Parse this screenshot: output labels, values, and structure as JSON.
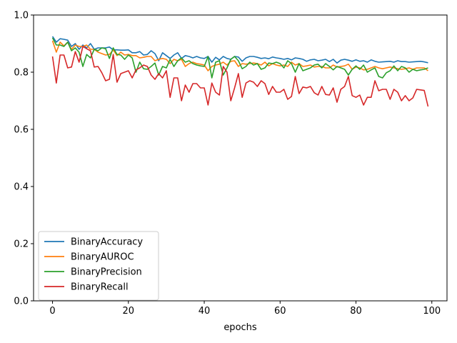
{
  "chart_data": {
    "type": "line",
    "title": "",
    "xlabel": "epochs",
    "ylabel": "",
    "xlim": [
      -5,
      104
    ],
    "ylim": [
      0.0,
      1.0
    ],
    "xticks": [
      0,
      20,
      40,
      60,
      80,
      100
    ],
    "yticks": [
      0.0,
      0.2,
      0.4,
      0.6,
      0.8,
      1.0
    ],
    "xtick_labels": [
      "0",
      "20",
      "40",
      "60",
      "80",
      "100"
    ],
    "ytick_labels": [
      "0.0",
      "0.2",
      "0.4",
      "0.6",
      "0.8",
      "1.0"
    ],
    "grid": false,
    "legend_position": "lower-left",
    "x": [
      0,
      1,
      2,
      3,
      4,
      5,
      6,
      7,
      8,
      9,
      10,
      11,
      12,
      13,
      14,
      15,
      16,
      17,
      18,
      19,
      20,
      21,
      22,
      23,
      24,
      25,
      26,
      27,
      28,
      29,
      30,
      31,
      32,
      33,
      34,
      35,
      36,
      37,
      38,
      39,
      40,
      41,
      42,
      43,
      44,
      45,
      46,
      47,
      48,
      49,
      50,
      51,
      52,
      53,
      54,
      55,
      56,
      57,
      58,
      59,
      60,
      61,
      62,
      63,
      64,
      65,
      66,
      67,
      68,
      69,
      70,
      71,
      72,
      73,
      74,
      75,
      76,
      77,
      78,
      79,
      80,
      81,
      82,
      83,
      84,
      85,
      86,
      87,
      88,
      89,
      90,
      91,
      92,
      93,
      94,
      95,
      96,
      97,
      98,
      99
    ],
    "series": [
      {
        "name": "BinaryAccuracy",
        "color": "#1f77b4",
        "values": [
          0.925,
          0.905,
          0.917,
          0.915,
          0.912,
          0.89,
          0.9,
          0.88,
          0.895,
          0.885,
          0.9,
          0.88,
          0.885,
          0.885,
          0.885,
          0.888,
          0.878,
          0.878,
          0.877,
          0.877,
          0.878,
          0.868,
          0.868,
          0.872,
          0.86,
          0.862,
          0.875,
          0.865,
          0.84,
          0.868,
          0.858,
          0.848,
          0.86,
          0.868,
          0.848,
          0.858,
          0.855,
          0.85,
          0.855,
          0.85,
          0.848,
          0.855,
          0.835,
          0.852,
          0.843,
          0.855,
          0.848,
          0.845,
          0.855,
          0.853,
          0.838,
          0.85,
          0.855,
          0.855,
          0.852,
          0.848,
          0.85,
          0.847,
          0.853,
          0.85,
          0.848,
          0.845,
          0.848,
          0.843,
          0.85,
          0.848,
          0.845,
          0.838,
          0.843,
          0.845,
          0.84,
          0.842,
          0.845,
          0.837,
          0.845,
          0.832,
          0.842,
          0.845,
          0.842,
          0.838,
          0.843,
          0.838,
          0.84,
          0.835,
          0.843,
          0.838,
          0.835,
          0.836,
          0.837,
          0.838,
          0.835,
          0.84,
          0.837,
          0.837,
          0.835,
          0.836,
          0.837,
          0.838,
          0.836,
          0.833
        ]
      },
      {
        "name": "BinaryAUROC",
        "color": "#ff7f0e",
        "values": [
          0.91,
          0.87,
          0.905,
          0.892,
          0.905,
          0.88,
          0.895,
          0.89,
          0.89,
          0.895,
          0.88,
          0.88,
          0.87,
          0.865,
          0.86,
          0.862,
          0.878,
          0.858,
          0.87,
          0.86,
          0.862,
          0.858,
          0.858,
          0.85,
          0.852,
          0.855,
          0.855,
          0.84,
          0.845,
          0.848,
          0.845,
          0.83,
          0.845,
          0.84,
          0.845,
          0.82,
          0.83,
          0.835,
          0.83,
          0.828,
          0.825,
          0.805,
          0.82,
          0.825,
          0.828,
          0.835,
          0.825,
          0.838,
          0.84,
          0.82,
          0.83,
          0.828,
          0.83,
          0.832,
          0.83,
          0.825,
          0.835,
          0.822,
          0.83,
          0.825,
          0.822,
          0.825,
          0.82,
          0.835,
          0.825,
          0.83,
          0.82,
          0.822,
          0.825,
          0.818,
          0.82,
          0.82,
          0.815,
          0.815,
          0.825,
          0.818,
          0.82,
          0.822,
          0.828,
          0.81,
          0.818,
          0.815,
          0.808,
          0.81,
          0.815,
          0.82,
          0.815,
          0.812,
          0.815,
          0.818,
          0.815,
          0.812,
          0.81,
          0.812,
          0.815,
          0.81,
          0.815,
          0.815,
          0.815,
          0.805
        ]
      },
      {
        "name": "BinaryPrecision",
        "color": "#2ca02c",
        "values": [
          0.92,
          0.895,
          0.895,
          0.89,
          0.905,
          0.875,
          0.885,
          0.87,
          0.82,
          0.862,
          0.85,
          0.88,
          0.875,
          0.885,
          0.882,
          0.848,
          0.885,
          0.862,
          0.86,
          0.845,
          0.86,
          0.85,
          0.8,
          0.835,
          0.812,
          0.81,
          0.82,
          0.832,
          0.79,
          0.82,
          0.815,
          0.845,
          0.82,
          0.84,
          0.85,
          0.835,
          0.84,
          0.83,
          0.825,
          0.822,
          0.82,
          0.855,
          0.78,
          0.835,
          0.84,
          0.79,
          0.815,
          0.845,
          0.855,
          0.84,
          0.812,
          0.82,
          0.835,
          0.825,
          0.83,
          0.81,
          0.815,
          0.832,
          0.83,
          0.835,
          0.83,
          0.815,
          0.84,
          0.83,
          0.8,
          0.83,
          0.805,
          0.81,
          0.815,
          0.825,
          0.828,
          0.815,
          0.83,
          0.82,
          0.808,
          0.82,
          0.815,
          0.81,
          0.79,
          0.81,
          0.822,
          0.81,
          0.825,
          0.8,
          0.808,
          0.815,
          0.785,
          0.78,
          0.798,
          0.805,
          0.822,
          0.805,
          0.82,
          0.815,
          0.8,
          0.81,
          0.805,
          0.808,
          0.81,
          0.815
        ]
      },
      {
        "name": "BinaryRecall",
        "color": "#d62728",
        "values": [
          0.855,
          0.762,
          0.86,
          0.86,
          0.815,
          0.818,
          0.872,
          0.835,
          0.89,
          0.882,
          0.875,
          0.818,
          0.82,
          0.798,
          0.77,
          0.775,
          0.862,
          0.765,
          0.795,
          0.8,
          0.805,
          0.78,
          0.808,
          0.815,
          0.825,
          0.82,
          0.79,
          0.775,
          0.795,
          0.78,
          0.805,
          0.712,
          0.78,
          0.78,
          0.7,
          0.755,
          0.73,
          0.76,
          0.76,
          0.745,
          0.745,
          0.685,
          0.762,
          0.73,
          0.72,
          0.82,
          0.8,
          0.7,
          0.745,
          0.795,
          0.712,
          0.762,
          0.77,
          0.765,
          0.75,
          0.77,
          0.76,
          0.722,
          0.75,
          0.73,
          0.73,
          0.74,
          0.705,
          0.715,
          0.785,
          0.725,
          0.748,
          0.745,
          0.75,
          0.728,
          0.72,
          0.75,
          0.722,
          0.72,
          0.745,
          0.695,
          0.74,
          0.75,
          0.785,
          0.718,
          0.712,
          0.72,
          0.685,
          0.712,
          0.712,
          0.77,
          0.735,
          0.74,
          0.74,
          0.705,
          0.74,
          0.73,
          0.7,
          0.718,
          0.7,
          0.71,
          0.74,
          0.738,
          0.736,
          0.68
        ]
      }
    ]
  }
}
